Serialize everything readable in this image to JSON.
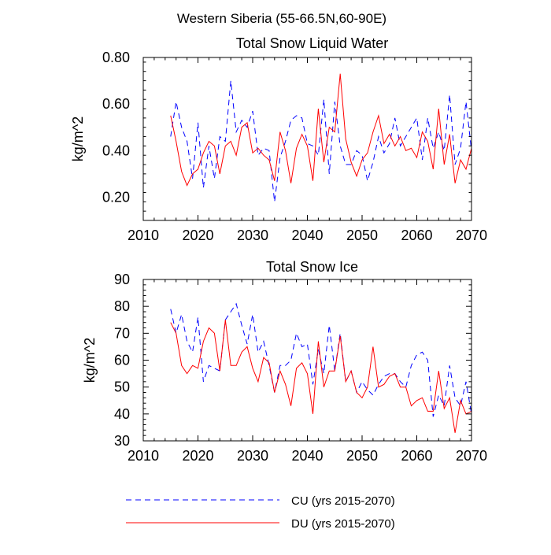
{
  "figure_title": "Western Siberia (55-66.5N,60-90E)",
  "legend": [
    {
      "label": "CU (yrs 2015-2070)",
      "color": "#0000ff",
      "dash": "dashed"
    },
    {
      "label": "DU (yrs 2015-2070)",
      "color": "#ff0000",
      "dash": "solid"
    }
  ],
  "chart_data": [
    {
      "type": "line",
      "title": "Total Snow Liquid Water",
      "xlabel": "",
      "ylabel": "kg/m^2",
      "xlim": [
        2010,
        2070
      ],
      "ylim": [
        0.1,
        0.8
      ],
      "xticks": [
        2010,
        2020,
        2030,
        2040,
        2050,
        2060,
        2070
      ],
      "yticks": [
        0.2,
        0.4,
        0.6,
        0.8
      ],
      "ytick_labels": [
        "0.20",
        "0.40",
        "0.60",
        "0.80"
      ],
      "x": [
        2015,
        2016,
        2017,
        2018,
        2019,
        2020,
        2021,
        2022,
        2023,
        2024,
        2025,
        2026,
        2027,
        2028,
        2029,
        2030,
        2031,
        2032,
        2033,
        2034,
        2035,
        2036,
        2037,
        2038,
        2039,
        2040,
        2041,
        2042,
        2043,
        2044,
        2045,
        2046,
        2047,
        2048,
        2049,
        2050,
        2051,
        2052,
        2053,
        2054,
        2055,
        2056,
        2057,
        2058,
        2059,
        2060,
        2061,
        2062,
        2063,
        2064,
        2065,
        2066,
        2067,
        2068,
        2069,
        2070
      ],
      "series": [
        {
          "name": "CU",
          "color": "#0000ff",
          "dash": "dashed",
          "values": [
            0.46,
            0.61,
            0.5,
            0.44,
            0.28,
            0.52,
            0.24,
            0.42,
            0.28,
            0.46,
            0.44,
            0.7,
            0.48,
            0.53,
            0.5,
            0.57,
            0.38,
            0.41,
            0.4,
            0.18,
            0.37,
            0.44,
            0.53,
            0.55,
            0.54,
            0.43,
            0.42,
            0.38,
            0.62,
            0.3,
            0.61,
            0.42,
            0.34,
            0.34,
            0.4,
            0.38,
            0.27,
            0.35,
            0.46,
            0.39,
            0.43,
            0.54,
            0.42,
            0.46,
            0.5,
            0.54,
            0.36,
            0.54,
            0.41,
            0.48,
            0.4,
            0.64,
            0.34,
            0.41,
            0.61,
            0.4
          ]
        },
        {
          "name": "DU",
          "color": "#ff0000",
          "dash": "solid",
          "values": [
            0.55,
            0.44,
            0.31,
            0.25,
            0.3,
            0.32,
            0.39,
            0.44,
            0.42,
            0.3,
            0.42,
            0.44,
            0.38,
            0.5,
            0.52,
            0.39,
            0.41,
            0.38,
            0.36,
            0.27,
            0.48,
            0.4,
            0.26,
            0.41,
            0.47,
            0.42,
            0.27,
            0.58,
            0.35,
            0.5,
            0.48,
            0.73,
            0.45,
            0.35,
            0.29,
            0.36,
            0.39,
            0.48,
            0.55,
            0.43,
            0.47,
            0.42,
            0.46,
            0.4,
            0.41,
            0.37,
            0.48,
            0.44,
            0.32,
            0.58,
            0.34,
            0.47,
            0.26,
            0.36,
            0.32,
            0.41
          ]
        }
      ]
    },
    {
      "type": "line",
      "title": "Total Snow Ice",
      "xlabel": "",
      "ylabel": "kg/m^2",
      "xlim": [
        2010,
        2070
      ],
      "ylim": [
        30,
        90
      ],
      "xticks": [
        2010,
        2020,
        2030,
        2040,
        2050,
        2060,
        2070
      ],
      "yticks": [
        30,
        40,
        50,
        60,
        70,
        80,
        90
      ],
      "ytick_labels": [
        "30",
        "40",
        "50",
        "60",
        "70",
        "80",
        "90"
      ],
      "x": [
        2015,
        2016,
        2017,
        2018,
        2019,
        2020,
        2021,
        2022,
        2023,
        2024,
        2025,
        2026,
        2027,
        2028,
        2029,
        2030,
        2031,
        2032,
        2033,
        2034,
        2035,
        2036,
        2037,
        2038,
        2039,
        2040,
        2041,
        2042,
        2043,
        2044,
        2045,
        2046,
        2047,
        2048,
        2049,
        2050,
        2051,
        2052,
        2053,
        2054,
        2055,
        2056,
        2057,
        2058,
        2059,
        2060,
        2061,
        2062,
        2063,
        2064,
        2065,
        2066,
        2067,
        2068,
        2069,
        2070
      ],
      "series": [
        {
          "name": "CU",
          "color": "#0000ff",
          "dash": "dashed",
          "values": [
            79,
            70,
            77,
            67,
            63,
            76,
            52,
            58,
            57,
            56,
            75,
            78,
            81,
            73,
            66,
            77,
            63,
            67,
            58,
            48,
            58,
            58,
            60,
            70,
            65,
            66,
            51,
            64,
            55,
            73,
            56,
            70,
            52,
            56,
            48,
            52,
            49,
            47,
            51,
            54,
            55,
            55,
            52,
            50,
            58,
            62,
            63,
            60,
            39,
            47,
            43,
            58,
            46,
            43,
            52,
            40
          ]
        },
        {
          "name": "DU",
          "color": "#ff0000",
          "dash": "solid",
          "values": [
            74,
            70,
            58,
            55,
            58,
            57,
            67,
            72,
            70,
            56,
            75,
            58,
            58,
            63,
            65,
            57,
            52,
            61,
            59,
            48,
            56,
            51,
            43,
            57,
            59,
            55,
            40,
            67,
            50,
            56,
            56,
            69,
            52,
            56,
            48,
            46,
            50,
            65,
            50,
            51,
            54,
            55,
            50,
            50,
            43,
            45,
            46,
            41,
            41,
            56,
            42,
            46,
            33,
            45,
            40,
            41
          ]
        }
      ]
    }
  ]
}
